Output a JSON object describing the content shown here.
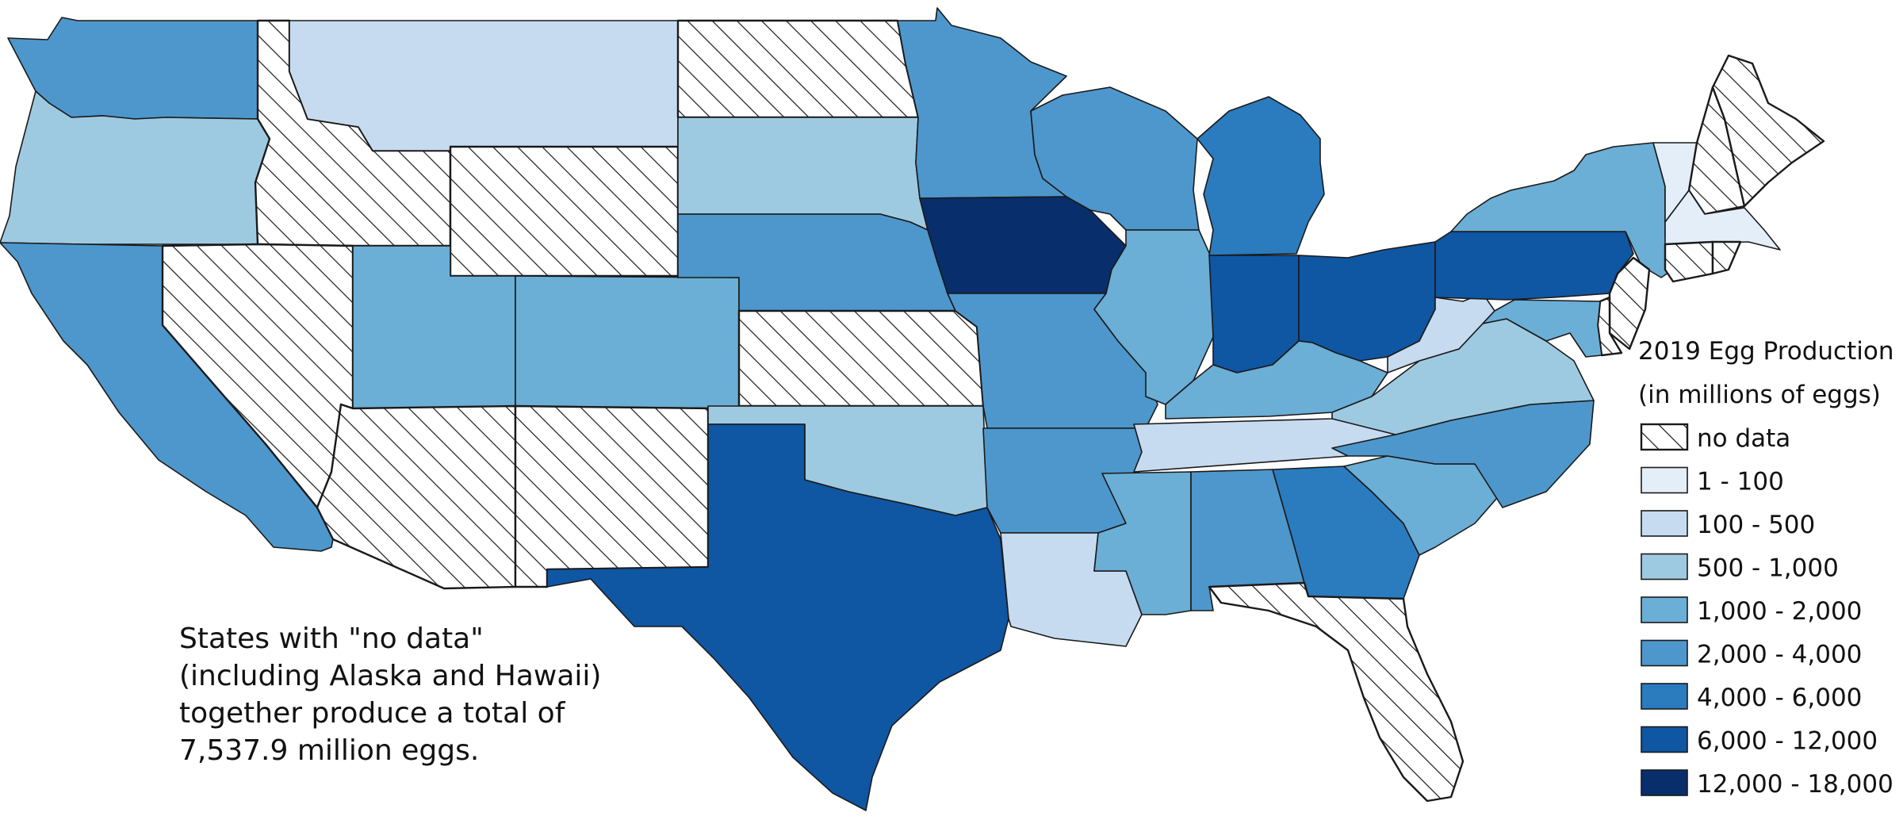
{
  "legend": {
    "title_line1": "2019 Egg Production",
    "title_line2": "(in millions of eggs)",
    "items": [
      {
        "label": "no data",
        "hatch": true,
        "color": "#ffffff"
      },
      {
        "label": "1 - 100",
        "color": "#e3eef9"
      },
      {
        "label": "100 - 500",
        "color": "#c6dbef"
      },
      {
        "label": "500 - 1,000",
        "color": "#9ecae1"
      },
      {
        "label": "1,000 - 2,000",
        "color": "#6baed6"
      },
      {
        "label": "2,000 - 4,000",
        "color": "#4d97cc"
      },
      {
        "label": "4,000 - 6,000",
        "color": "#2b7bbf"
      },
      {
        "label": "6,000 - 12,000",
        "color": "#0f56a3"
      },
      {
        "label": "12,000 - 18,000",
        "color": "#082e6b"
      }
    ]
  },
  "note": {
    "line1": "States with \"no data\"",
    "line2": "(including Alaska and Hawaii)",
    "line3": "together produce a total of",
    "line4": "7,537.9 million eggs."
  },
  "states": [
    {
      "name": "Washington",
      "class": 5
    },
    {
      "name": "Oregon",
      "class": 3
    },
    {
      "name": "California",
      "class": 5
    },
    {
      "name": "Idaho",
      "class": 0
    },
    {
      "name": "Nevada",
      "class": 0
    },
    {
      "name": "Montana",
      "class": 2
    },
    {
      "name": "Wyoming",
      "class": 0
    },
    {
      "name": "Utah",
      "class": 4
    },
    {
      "name": "Arizona",
      "class": 0
    },
    {
      "name": "Colorado",
      "class": 4
    },
    {
      "name": "New Mexico",
      "class": 0
    },
    {
      "name": "North Dakota",
      "class": 0
    },
    {
      "name": "South Dakota",
      "class": 3
    },
    {
      "name": "Nebraska",
      "class": 5
    },
    {
      "name": "Kansas",
      "class": 0
    },
    {
      "name": "Oklahoma",
      "class": 3
    },
    {
      "name": "Texas",
      "class": 7
    },
    {
      "name": "Minnesota",
      "class": 5
    },
    {
      "name": "Iowa",
      "class": 8
    },
    {
      "name": "Missouri",
      "class": 5
    },
    {
      "name": "Arkansas",
      "class": 5
    },
    {
      "name": "Louisiana",
      "class": 2
    },
    {
      "name": "Wisconsin",
      "class": 5
    },
    {
      "name": "Illinois",
      "class": 4
    },
    {
      "name": "Michigan",
      "class": 6
    },
    {
      "name": "Indiana",
      "class": 7
    },
    {
      "name": "Ohio",
      "class": 7
    },
    {
      "name": "Kentucky",
      "class": 4
    },
    {
      "name": "Tennessee",
      "class": 2
    },
    {
      "name": "Mississippi",
      "class": 4
    },
    {
      "name": "Alabama",
      "class": 5
    },
    {
      "name": "Georgia",
      "class": 6
    },
    {
      "name": "Florida",
      "class": 0
    },
    {
      "name": "South Carolina",
      "class": 4
    },
    {
      "name": "North Carolina",
      "class": 5
    },
    {
      "name": "Virginia",
      "class": 3
    },
    {
      "name": "West Virginia",
      "class": 2
    },
    {
      "name": "Pennsylvania",
      "class": 7
    },
    {
      "name": "New York",
      "class": 4
    },
    {
      "name": "Vermont",
      "class": 1
    },
    {
      "name": "New Hampshire",
      "class": 0
    },
    {
      "name": "Maine",
      "class": 0
    },
    {
      "name": "Massachusetts",
      "class": 1
    },
    {
      "name": "Connecticut",
      "class": 0
    },
    {
      "name": "Rhode Island",
      "class": 0
    },
    {
      "name": "New Jersey",
      "class": 0
    },
    {
      "name": "Delaware",
      "class": 0
    },
    {
      "name": "Maryland",
      "class": 4
    }
  ]
}
